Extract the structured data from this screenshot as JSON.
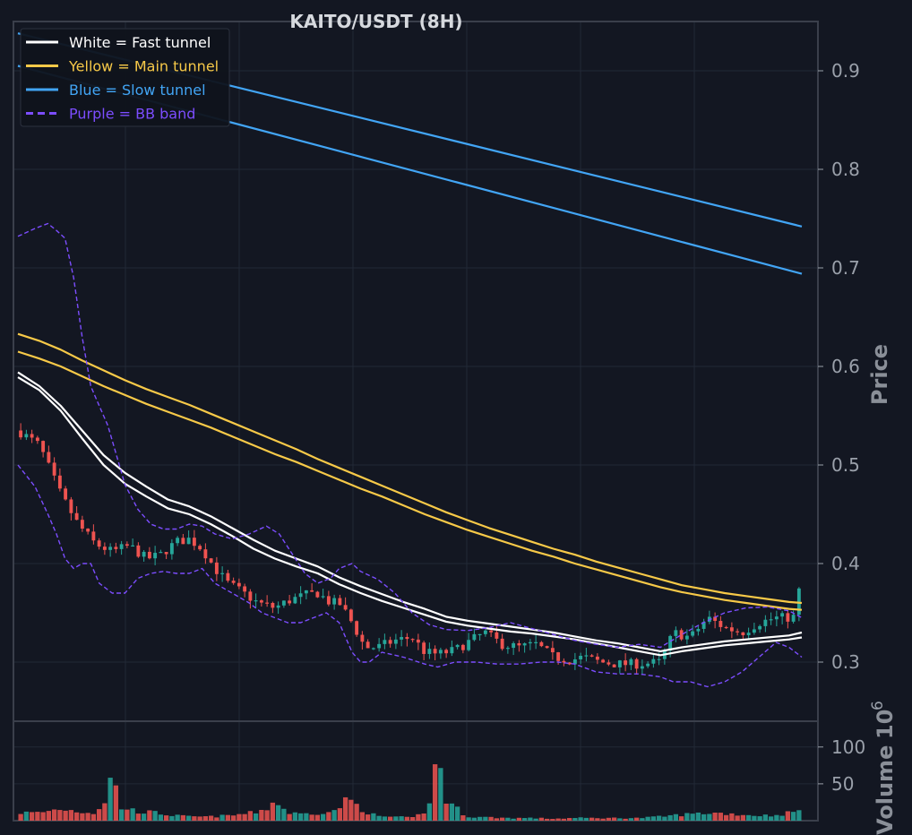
{
  "chart_data": {
    "type": "candlestick",
    "title": "KAITO/USDT (8H)",
    "price_axis": {
      "label": "Price",
      "ylim": [
        0.24,
        0.95
      ],
      "ticks": [
        0.3,
        0.4,
        0.5,
        0.6,
        0.7,
        0.8,
        0.9
      ],
      "tick_labels": [
        "0.3",
        "0.4",
        "0.5",
        "0.6",
        "0.7",
        "0.8",
        "0.9"
      ]
    },
    "volume_axis": {
      "label": "Volume",
      "multiplier": "10",
      "multiplier_exp": "6",
      "ylim": [
        0,
        135
      ],
      "ticks": [
        50,
        100
      ],
      "tick_labels": [
        "50",
        "100"
      ]
    },
    "legend": {
      "position": "top-left",
      "entries": [
        {
          "label": "White = Fast tunnel",
          "color": "#ffffff",
          "style": "solid"
        },
        {
          "label": "Yellow = Main tunnel",
          "color": "#f7c948",
          "style": "solid"
        },
        {
          "label": "Blue = Slow tunnel",
          "color": "#42a5f5",
          "style": "solid"
        },
        {
          "label": "Purple = BB band",
          "color": "#7c4dff",
          "style": "dashed"
        }
      ]
    },
    "colors": {
      "up": "#26a69a",
      "down": "#ef5350",
      "background": "#131722",
      "grid": "#222836"
    },
    "bar_count": 140,
    "close_path": [
      [
        0,
        0.535
      ],
      [
        10,
        0.52
      ],
      [
        20,
        0.47
      ],
      [
        28,
        0.44
      ],
      [
        36,
        0.42
      ],
      [
        44,
        0.412
      ],
      [
        52,
        0.418
      ],
      [
        60,
        0.405
      ],
      [
        66,
        0.408
      ],
      [
        74,
        0.422
      ],
      [
        80,
        0.425
      ],
      [
        86,
        0.415
      ],
      [
        92,
        0.395
      ],
      [
        98,
        0.38
      ],
      [
        104,
        0.372
      ],
      [
        112,
        0.36
      ],
      [
        120,
        0.355
      ],
      [
        126,
        0.362
      ],
      [
        134,
        0.368
      ],
      [
        140,
        0.37
      ],
      [
        146,
        0.36
      ],
      [
        150,
        0.36
      ],
      [
        156,
        0.34
      ],
      [
        162,
        0.315
      ],
      [
        168,
        0.315
      ],
      [
        176,
        0.322
      ],
      [
        184,
        0.325
      ],
      [
        190,
        0.31
      ],
      [
        196,
        0.308
      ],
      [
        204,
        0.312
      ],
      [
        210,
        0.32
      ],
      [
        218,
        0.33
      ],
      [
        226,
        0.318
      ],
      [
        234,
        0.315
      ],
      [
        242,
        0.318
      ],
      [
        250,
        0.305
      ],
      [
        258,
        0.302
      ],
      [
        264,
        0.305
      ],
      [
        272,
        0.3
      ],
      [
        280,
        0.298
      ],
      [
        290,
        0.298
      ],
      [
        300,
        0.3
      ],
      [
        306,
        0.33
      ],
      [
        314,
        0.325
      ],
      [
        322,
        0.345
      ],
      [
        330,
        0.335
      ],
      [
        338,
        0.33
      ],
      [
        346,
        0.34
      ],
      [
        354,
        0.345
      ],
      [
        362,
        0.345
      ],
      [
        366,
        0.385
      ]
    ],
    "volume_path": [
      [
        0,
        12
      ],
      [
        10,
        12
      ],
      [
        20,
        18
      ],
      [
        28,
        14
      ],
      [
        36,
        12
      ],
      [
        40,
        25
      ],
      [
        44,
        70
      ],
      [
        48,
        20
      ],
      [
        56,
        14
      ],
      [
        64,
        12
      ],
      [
        72,
        8
      ],
      [
        80,
        6
      ],
      [
        90,
        6
      ],
      [
        100,
        8
      ],
      [
        110,
        12
      ],
      [
        116,
        18
      ],
      [
        120,
        30
      ],
      [
        126,
        12
      ],
      [
        132,
        10
      ],
      [
        140,
        12
      ],
      [
        148,
        14
      ],
      [
        152,
        28
      ],
      [
        156,
        30
      ],
      [
        160,
        18
      ],
      [
        168,
        6
      ],
      [
        176,
        6
      ],
      [
        184,
        4
      ],
      [
        188,
        10
      ],
      [
        192,
        20
      ],
      [
        196,
        110
      ],
      [
        200,
        30
      ],
      [
        204,
        20
      ],
      [
        210,
        6
      ],
      [
        220,
        5
      ],
      [
        230,
        4
      ],
      [
        240,
        4
      ],
      [
        250,
        3
      ],
      [
        260,
        4
      ],
      [
        270,
        4
      ],
      [
        280,
        4
      ],
      [
        290,
        4
      ],
      [
        300,
        6
      ],
      [
        306,
        8
      ],
      [
        314,
        10
      ],
      [
        324,
        12
      ],
      [
        334,
        10
      ],
      [
        344,
        8
      ],
      [
        354,
        8
      ],
      [
        360,
        12
      ],
      [
        366,
        15
      ]
    ],
    "series": [
      {
        "name": "White = Fast tunnel",
        "color": "#ffffff",
        "style": "solid",
        "x": [
          0,
          10,
          20,
          30,
          40,
          50,
          60,
          70,
          80,
          90,
          100,
          110,
          120,
          130,
          140,
          150,
          160,
          170,
          180,
          190,
          200,
          210,
          220,
          230,
          240,
          250,
          260,
          270,
          280,
          290,
          300,
          310,
          320,
          330,
          340,
          350,
          360,
          366
        ],
        "y": [
          0.594,
          0.58,
          0.56,
          0.535,
          0.51,
          0.492,
          0.478,
          0.465,
          0.458,
          0.448,
          0.436,
          0.424,
          0.413,
          0.405,
          0.397,
          0.386,
          0.377,
          0.369,
          0.361,
          0.354,
          0.346,
          0.342,
          0.339,
          0.336,
          0.333,
          0.33,
          0.326,
          0.322,
          0.319,
          0.315,
          0.311,
          0.315,
          0.318,
          0.321,
          0.323,
          0.325,
          0.327,
          0.33
        ]
      },
      {
        "name": "White = Fast tunnel",
        "color": "#ffffff",
        "style": "solid",
        "x": [
          0,
          10,
          20,
          30,
          40,
          50,
          60,
          70,
          80,
          90,
          100,
          110,
          120,
          130,
          140,
          150,
          160,
          170,
          180,
          190,
          200,
          210,
          220,
          230,
          240,
          250,
          260,
          270,
          280,
          290,
          300,
          310,
          320,
          330,
          340,
          350,
          360,
          366
        ],
        "y": [
          0.589,
          0.576,
          0.555,
          0.527,
          0.5,
          0.481,
          0.468,
          0.456,
          0.45,
          0.44,
          0.428,
          0.415,
          0.405,
          0.397,
          0.39,
          0.379,
          0.37,
          0.362,
          0.355,
          0.348,
          0.341,
          0.337,
          0.334,
          0.331,
          0.329,
          0.326,
          0.323,
          0.319,
          0.315,
          0.311,
          0.307,
          0.311,
          0.314,
          0.317,
          0.319,
          0.321,
          0.323,
          0.325
        ]
      },
      {
        "name": "Yellow = Main tunnel",
        "color": "#f7c948",
        "style": "solid",
        "x": [
          0,
          10,
          20,
          30,
          40,
          50,
          60,
          70,
          80,
          90,
          100,
          110,
          120,
          130,
          140,
          150,
          160,
          170,
          180,
          190,
          200,
          210,
          220,
          230,
          240,
          250,
          260,
          270,
          280,
          290,
          300,
          310,
          320,
          330,
          340,
          350,
          360,
          366
        ],
        "y": [
          0.633,
          0.626,
          0.617,
          0.606,
          0.596,
          0.586,
          0.577,
          0.569,
          0.561,
          0.552,
          0.543,
          0.534,
          0.525,
          0.516,
          0.506,
          0.497,
          0.488,
          0.479,
          0.47,
          0.461,
          0.452,
          0.444,
          0.436,
          0.429,
          0.422,
          0.415,
          0.409,
          0.402,
          0.396,
          0.39,
          0.384,
          0.378,
          0.374,
          0.37,
          0.367,
          0.364,
          0.361,
          0.36
        ]
      },
      {
        "name": "Yellow = Main tunnel",
        "color": "#f7c948",
        "style": "solid",
        "x": [
          0,
          10,
          20,
          30,
          40,
          50,
          60,
          70,
          80,
          90,
          100,
          110,
          120,
          130,
          140,
          150,
          160,
          170,
          180,
          190,
          200,
          210,
          220,
          230,
          240,
          250,
          260,
          270,
          280,
          290,
          300,
          310,
          320,
          330,
          340,
          350,
          360,
          366
        ],
        "y": [
          0.615,
          0.608,
          0.6,
          0.59,
          0.58,
          0.571,
          0.562,
          0.554,
          0.546,
          0.538,
          0.529,
          0.52,
          0.511,
          0.503,
          0.494,
          0.485,
          0.476,
          0.468,
          0.459,
          0.45,
          0.442,
          0.434,
          0.427,
          0.42,
          0.413,
          0.407,
          0.4,
          0.394,
          0.388,
          0.382,
          0.376,
          0.371,
          0.367,
          0.363,
          0.36,
          0.357,
          0.354,
          0.353
        ]
      },
      {
        "name": "Blue = Slow tunnel",
        "color": "#42a5f5",
        "style": "solid",
        "x": [
          0,
          366
        ],
        "y": [
          0.938,
          0.742
        ]
      },
      {
        "name": "Blue = Slow tunnel",
        "color": "#42a5f5",
        "style": "solid",
        "x": [
          0,
          366
        ],
        "y": [
          0.905,
          0.694
        ]
      },
      {
        "name": "Purple = BB band",
        "color": "#7c4dff",
        "style": "dashed",
        "x": [
          0,
          8,
          14,
          18,
          22,
          26,
          30,
          34,
          38,
          42,
          46,
          50,
          56,
          62,
          68,
          74,
          80,
          86,
          92,
          100,
          108,
          116,
          122,
          128,
          134,
          140,
          146,
          150,
          156,
          160,
          164,
          168,
          176,
          184,
          192,
          200,
          210,
          220,
          230,
          240,
          250,
          260,
          270,
          280,
          290,
          300,
          310,
          320,
          330,
          340,
          350,
          360,
          366
        ],
        "y": [
          0.732,
          0.74,
          0.745,
          0.738,
          0.73,
          0.69,
          0.63,
          0.58,
          0.56,
          0.54,
          0.51,
          0.48,
          0.455,
          0.44,
          0.435,
          0.435,
          0.44,
          0.438,
          0.43,
          0.425,
          0.43,
          0.438,
          0.43,
          0.41,
          0.39,
          0.38,
          0.385,
          0.395,
          0.4,
          0.392,
          0.388,
          0.384,
          0.37,
          0.35,
          0.338,
          0.333,
          0.332,
          0.335,
          0.34,
          0.334,
          0.328,
          0.322,
          0.318,
          0.315,
          0.318,
          0.315,
          0.328,
          0.34,
          0.35,
          0.355,
          0.356,
          0.352,
          0.345
        ]
      },
      {
        "name": "Purple = BB band",
        "color": "#7c4dff",
        "style": "dashed",
        "x": [
          0,
          8,
          14,
          18,
          22,
          26,
          30,
          34,
          38,
          44,
          50,
          56,
          62,
          68,
          74,
          80,
          86,
          92,
          100,
          108,
          114,
          120,
          126,
          132,
          138,
          144,
          150,
          156,
          160,
          164,
          170,
          180,
          190,
          196,
          204,
          214,
          224,
          234,
          244,
          252,
          260,
          270,
          280,
          290,
          300,
          306,
          314,
          322,
          330,
          338,
          346,
          354,
          360,
          366
        ],
        "y": [
          0.5,
          0.478,
          0.45,
          0.43,
          0.405,
          0.395,
          0.4,
          0.4,
          0.38,
          0.37,
          0.37,
          0.385,
          0.39,
          0.392,
          0.39,
          0.39,
          0.395,
          0.38,
          0.37,
          0.36,
          0.35,
          0.345,
          0.34,
          0.34,
          0.345,
          0.35,
          0.34,
          0.31,
          0.3,
          0.3,
          0.31,
          0.305,
          0.298,
          0.295,
          0.3,
          0.3,
          0.298,
          0.298,
          0.3,
          0.3,
          0.298,
          0.29,
          0.288,
          0.288,
          0.285,
          0.28,
          0.28,
          0.275,
          0.28,
          0.29,
          0.305,
          0.32,
          0.315,
          0.305
        ]
      }
    ]
  }
}
